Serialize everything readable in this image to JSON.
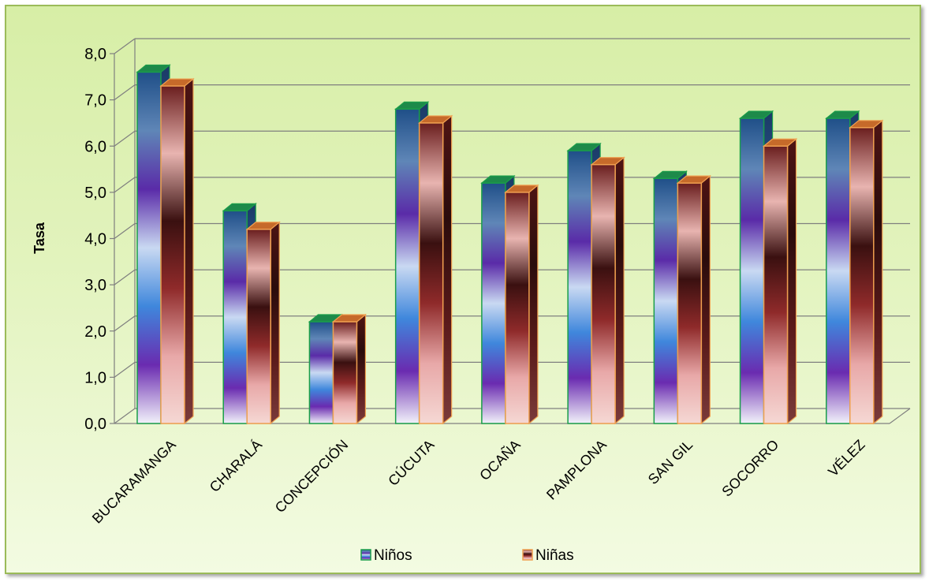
{
  "chart_data": {
    "type": "bar",
    "title": "",
    "xlabel": "",
    "ylabel": "Tasa",
    "ylim": [
      0,
      8
    ],
    "yticks": [
      "0,0",
      "1,0",
      "2,0",
      "3,0",
      "4,0",
      "5,0",
      "6,0",
      "7,0",
      "8,0"
    ],
    "categories": [
      "BUCARAMANGA",
      "CHARALÁ",
      "CONCEPCIÓN",
      "CÚCUTA",
      "OCAÑA",
      "PAMPLONA",
      "SAN GIL",
      "SOCORRO",
      "VÉLEZ"
    ],
    "series": [
      {
        "name": "Niños",
        "values": [
          7.6,
          4.6,
          2.2,
          6.8,
          5.2,
          5.9,
          5.3,
          6.6,
          6.6
        ]
      },
      {
        "name": "Niñas",
        "values": [
          7.3,
          4.2,
          2.2,
          6.5,
          5.0,
          5.6,
          5.2,
          6.0,
          6.4
        ]
      }
    ],
    "legend": "bottom",
    "grid": true,
    "colors": {
      "ninos_border": "#1a9e4a",
      "ninas_border": "#f0a050",
      "ninos_stops": [
        "#f2f2fa",
        "#6a2bb0",
        "#3f87dc",
        "#c9d9f2",
        "#5a2ba8",
        "#5f86b7",
        "#1f4f88"
      ],
      "ninas_stops": [
        "#f5d8d4",
        "#e8a8a8",
        "#8f2a2a",
        "#3a1010",
        "#e8b4b0",
        "#6a1e1e"
      ],
      "grid": "#7f7f7f"
    }
  }
}
